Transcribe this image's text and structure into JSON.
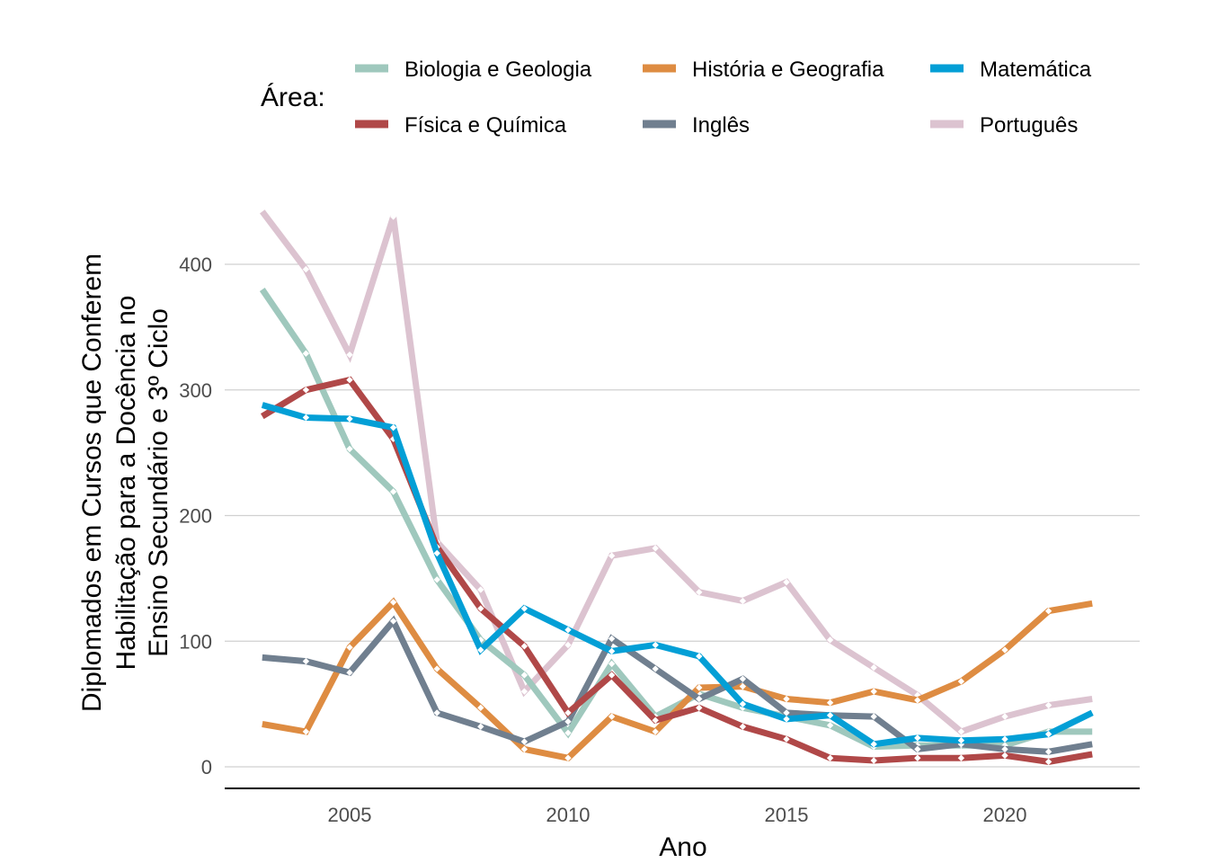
{
  "chart_data": {
    "type": "line",
    "title": "",
    "xlabel": "Ano",
    "ylabel_lines": [
      "Diplomados em Cursos que Conferem",
      "Habilitação para a Docência no",
      "Ensino Secundário e 3º Ciclo"
    ],
    "xlim": [
      2002.2,
      2022.9
    ],
    "ylim": [
      -17,
      460
    ],
    "x_ticks": [
      2005,
      2010,
      2015,
      2020
    ],
    "y_ticks": [
      0,
      100,
      200,
      300,
      400
    ],
    "grid": "horizontal",
    "legend": {
      "title": "Área:",
      "placement": "top",
      "entries": [
        "Biologia e Geologia",
        "História e Geografia",
        "Matemática",
        "Física e Química",
        "Inglês",
        "Português"
      ]
    },
    "x": [
      2003,
      2004,
      2005,
      2006,
      2007,
      2008,
      2009,
      2010,
      2011,
      2012,
      2013,
      2014,
      2015,
      2016,
      2017,
      2018,
      2019,
      2020,
      2021,
      2022
    ],
    "series": [
      {
        "name": "Biologia e Geologia",
        "color": "#9fc8bd",
        "values": [
          380,
          329,
          253,
          219,
          149,
          101,
          73,
          27,
          82,
          40,
          58,
          47,
          40,
          33,
          16,
          17,
          17,
          17,
          28,
          28
        ]
      },
      {
        "name": "História e Geografia",
        "color": "#de8c42",
        "values": [
          34,
          28,
          95,
          131,
          78,
          47,
          14,
          7,
          40,
          28,
          63,
          64,
          54,
          51,
          60,
          53,
          68,
          93,
          124,
          130
        ]
      },
      {
        "name": "Matemática",
        "color": "#039fd6",
        "values": [
          288,
          278,
          277,
          270,
          170,
          93,
          126,
          109,
          92,
          97,
          88,
          50,
          38,
          41,
          18,
          23,
          21,
          22,
          26,
          43
        ]
      },
      {
        "name": "Física e Química",
        "color": "#b04848",
        "values": [
          279,
          300,
          308,
          261,
          175,
          126,
          96,
          43,
          73,
          37,
          47,
          32,
          22,
          7,
          5,
          7,
          7,
          9,
          4,
          10
        ]
      },
      {
        "name": "Inglês",
        "color": "#707f8f",
        "values": [
          87,
          84,
          75,
          116,
          43,
          32,
          20,
          36,
          102,
          78,
          54,
          70,
          43,
          41,
          40,
          14,
          18,
          14,
          12,
          18
        ]
      },
      {
        "name": "Português",
        "color": "#dcc3d0",
        "values": [
          442,
          396,
          328,
          438,
          179,
          141,
          60,
          97,
          168,
          174,
          139,
          132,
          147,
          101,
          79,
          57,
          28,
          40,
          49,
          54
        ]
      }
    ]
  }
}
